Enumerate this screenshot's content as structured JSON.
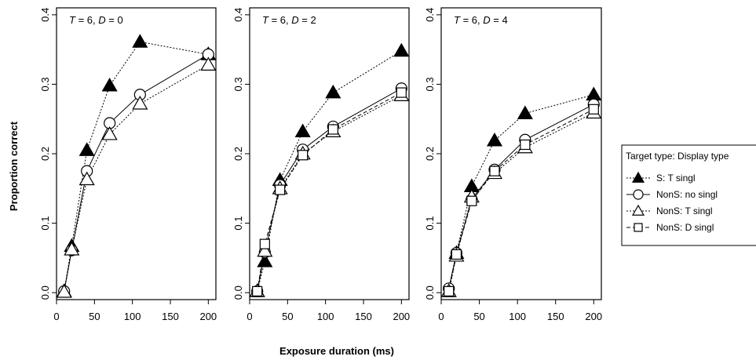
{
  "figure": {
    "ylabel": "Proportion correct",
    "xlabel": "Exposure duration (ms)"
  },
  "legend": {
    "title": "Target type: Display type",
    "entries": [
      {
        "label": "S: T singl",
        "marker": "filled-triangle",
        "line": "dotted"
      },
      {
        "label": "NonS: no singl",
        "marker": "open-circle",
        "line": "solid"
      },
      {
        "label": "NonS: T singl",
        "marker": "open-triangle",
        "line": "dotted"
      },
      {
        "label": "NonS: D singl",
        "marker": "open-square",
        "line": "dashed"
      }
    ]
  },
  "chart_data": [
    {
      "type": "line",
      "title": "T = 6, D = 0",
      "title_parts": {
        "t_var": "T",
        "t_val": " = 6, ",
        "d_var": "D",
        "d_val": " = 0"
      },
      "xlim": [
        0,
        210
      ],
      "ylim": [
        -0.01,
        0.41
      ],
      "x_ticks": [
        0,
        50,
        100,
        150,
        200
      ],
      "y_ticks": [
        0.0,
        0.1,
        0.2,
        0.3,
        0.4
      ],
      "y_tick_labels": [
        "0.0",
        "0.1",
        "0.2",
        "0.3",
        "0.4"
      ],
      "x": [
        10,
        20,
        40,
        70,
        110,
        200
      ],
      "series": [
        {
          "name": "S: T singl",
          "values": [
            0.002,
            0.067,
            0.205,
            0.298,
            0.361,
            0.343
          ]
        },
        {
          "name": "NonS: no singl",
          "values": [
            0.002,
            0.061,
            0.175,
            0.244,
            0.285,
            0.343
          ]
        },
        {
          "name": "NonS: T singl",
          "values": [
            0.001,
            0.062,
            0.163,
            0.228,
            0.272,
            0.328
          ]
        }
      ]
    },
    {
      "type": "line",
      "title": "T = 6, D = 2",
      "title_parts": {
        "t_var": "T",
        "t_val": " = 6, ",
        "d_var": "D",
        "d_val": " = 2"
      },
      "xlim": [
        0,
        210
      ],
      "ylim": [
        -0.01,
        0.41
      ],
      "x_ticks": [
        0,
        50,
        100,
        150,
        200
      ],
      "y_ticks": [
        0.0,
        0.1,
        0.2,
        0.3,
        0.4
      ],
      "y_tick_labels": [
        "0.0",
        "0.1",
        "0.2",
        "0.3",
        "0.4"
      ],
      "x": [
        10,
        20,
        40,
        70,
        110,
        200
      ],
      "series": [
        {
          "name": "S: T singl",
          "values": [
            0.002,
            0.045,
            0.162,
            0.232,
            0.288,
            0.348
          ]
        },
        {
          "name": "NonS: no singl",
          "values": [
            0.002,
            0.058,
            0.155,
            0.206,
            0.239,
            0.294
          ]
        },
        {
          "name": "NonS: T singl",
          "values": [
            0.002,
            0.06,
            0.15,
            0.2,
            0.232,
            0.284
          ]
        },
        {
          "name": "NonS: D singl",
          "values": [
            0.002,
            0.07,
            0.148,
            0.198,
            0.235,
            0.288
          ]
        }
      ]
    },
    {
      "type": "line",
      "title": "T = 6, D = 4",
      "title_parts": {
        "t_var": "T",
        "t_val": " = 6, ",
        "d_var": "D",
        "d_val": " = 4"
      },
      "xlim": [
        0,
        210
      ],
      "ylim": [
        -0.01,
        0.41
      ],
      "x_ticks": [
        0,
        50,
        100,
        150,
        200
      ],
      "y_ticks": [
        0.0,
        0.1,
        0.2,
        0.3,
        0.4
      ],
      "y_tick_labels": [
        "0.0",
        "0.1",
        "0.2",
        "0.3",
        "0.4"
      ],
      "x": [
        10,
        20,
        40,
        70,
        110,
        200
      ],
      "series": [
        {
          "name": "S: T singl",
          "values": [
            0.002,
            0.057,
            0.153,
            0.219,
            0.258,
            0.285
          ]
        },
        {
          "name": "NonS: no singl",
          "values": [
            0.006,
            0.057,
            0.134,
            0.177,
            0.22,
            0.271
          ]
        },
        {
          "name": "NonS: T singl",
          "values": [
            0.002,
            0.053,
            0.138,
            0.172,
            0.209,
            0.259
          ]
        },
        {
          "name": "NonS: D singl",
          "values": [
            0.002,
            0.055,
            0.132,
            0.175,
            0.213,
            0.264
          ]
        }
      ]
    }
  ]
}
